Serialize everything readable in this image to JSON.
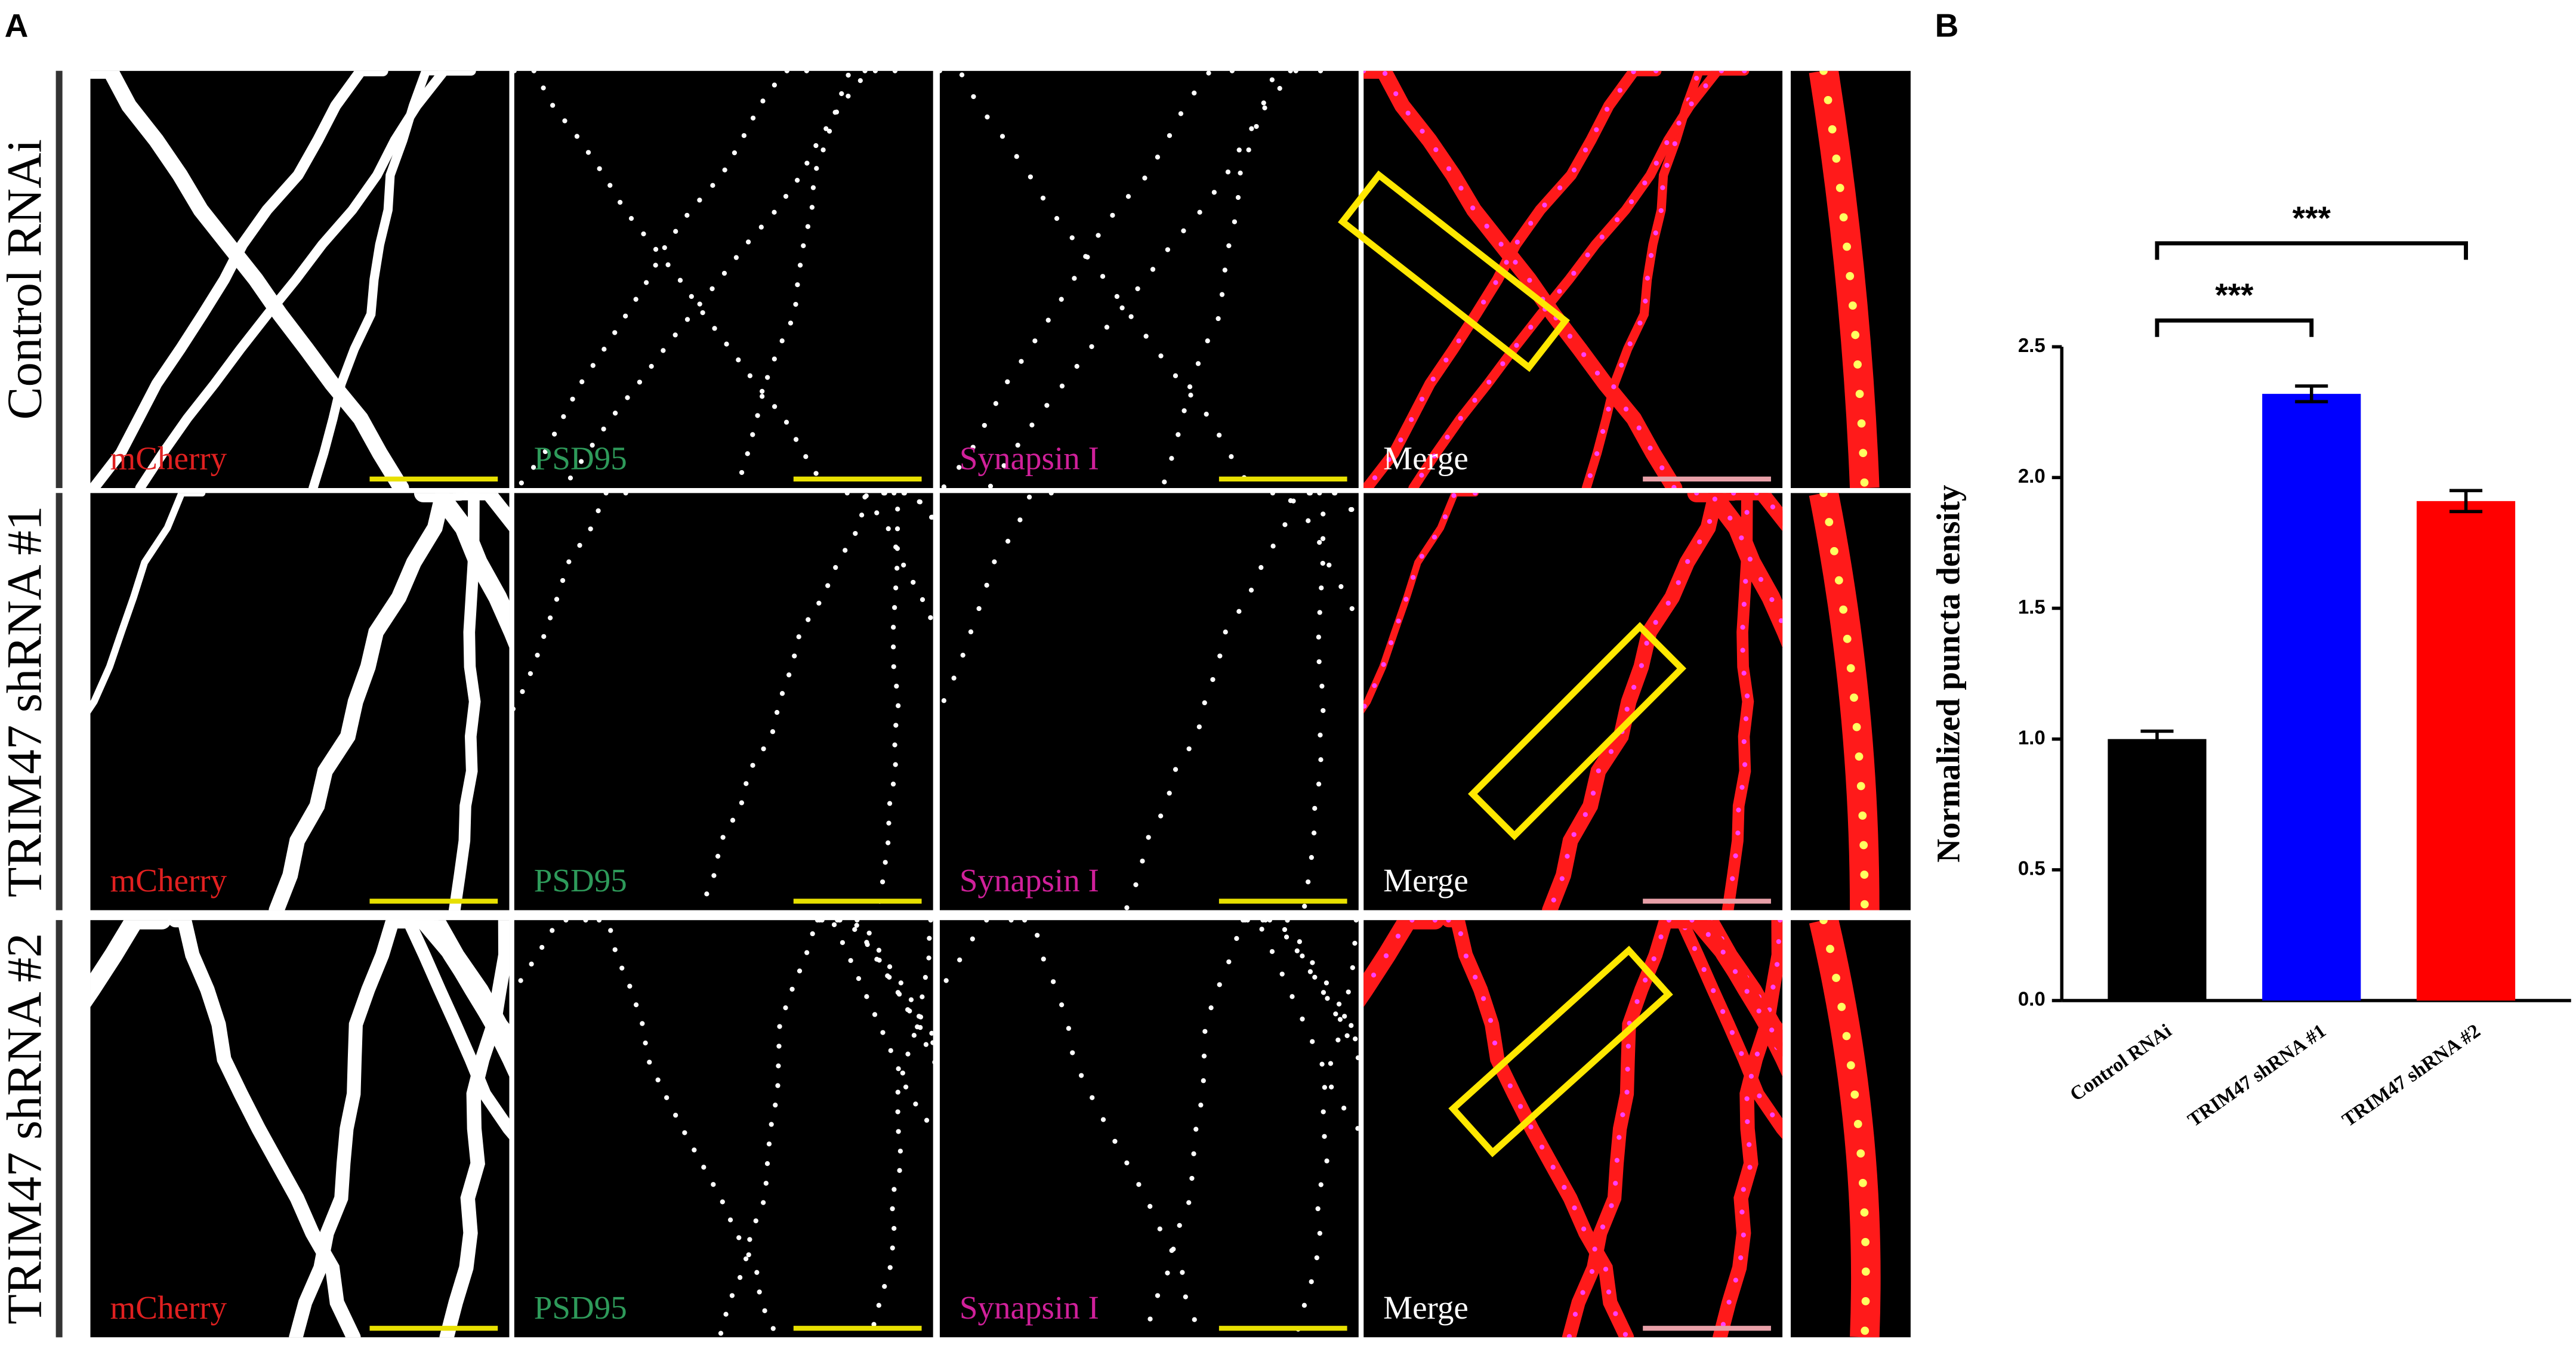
{
  "panel_a": {
    "label": "A",
    "rows": [
      {
        "label": "Control RNAi",
        "channels": [
          "mCherry",
          "PSD95",
          "Synapsin I",
          "Merge"
        ]
      },
      {
        "label": "TRIM47 shRNA #1",
        "channels": [
          "mCherry",
          "PSD95",
          "Synapsin I",
          "Merge"
        ]
      },
      {
        "label": "TRIM47 shRNA #2",
        "channels": [
          "mCherry",
          "PSD95",
          "Synapsin I",
          "Merge"
        ]
      }
    ]
  },
  "panel_b": {
    "label": "B"
  },
  "chart_data": {
    "type": "bar",
    "ylabel": "Normalized puncta density",
    "categories": [
      "Control RNAi",
      "TRIM47 shRNA #1",
      "TRIM47 shRNA #2"
    ],
    "values": [
      1.0,
      2.32,
      1.91
    ],
    "errors": [
      0.03,
      0.03,
      0.04
    ],
    "colors": [
      "#000000",
      "#0000ff",
      "#ff0000"
    ],
    "ylim": [
      0,
      2.5
    ],
    "yticks": [
      {
        "value": 0,
        "label": "0.0"
      },
      0.5,
      {
        "value": 1,
        "label": "1.0"
      },
      1.5,
      {
        "value": 2,
        "label": "2.0"
      },
      2.5
    ],
    "annotations": [
      "***",
      "***"
    ]
  }
}
